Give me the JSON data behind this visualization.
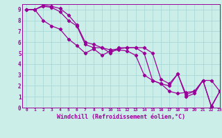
{
  "background_color": "#cceee8",
  "grid_color": "#aad8d8",
  "line_color": "#990099",
  "marker": "D",
  "markersize": 2.2,
  "linewidth": 0.9,
  "xlim": [
    -0.5,
    23
  ],
  "ylim": [
    0,
    9.5
  ],
  "xlabel": "Windchill (Refroidissement éolien,°C)",
  "xlabel_fontsize": 6.0,
  "xtick_labels": [
    "0",
    "1",
    "2",
    "3",
    "4",
    "5",
    "6",
    "7",
    "8",
    "9",
    "10",
    "11",
    "12",
    "13",
    "14",
    "15",
    "16",
    "17",
    "18",
    "19",
    "20",
    "21",
    "22",
    "23"
  ],
  "ytick_labels": [
    "0",
    "1",
    "2",
    "3",
    "4",
    "5",
    "6",
    "7",
    "8",
    "9"
  ],
  "series": [
    [
      9.0,
      9.0,
      9.4,
      9.3,
      9.1,
      8.5,
      7.6,
      6.0,
      5.8,
      5.5,
      5.3,
      5.4,
      5.5,
      5.5,
      5.5,
      5.0,
      2.6,
      2.2,
      3.1,
      1.0,
      1.3,
      2.5,
      2.5,
      1.5
    ],
    [
      9.0,
      9.0,
      8.0,
      7.5,
      7.2,
      6.3,
      5.7,
      5.0,
      5.4,
      4.8,
      5.2,
      5.3,
      5.2,
      4.8,
      3.0,
      2.5,
      2.2,
      1.5,
      1.3,
      1.4,
      1.5,
      2.5,
      0.05,
      1.5
    ],
    [
      9.0,
      9.0,
      9.3,
      9.2,
      8.8,
      8.0,
      7.5,
      5.8,
      5.5,
      5.5,
      5.0,
      5.5,
      5.5,
      5.5,
      5.0,
      2.5,
      2.2,
      2.0,
      3.1,
      1.2,
      1.5,
      2.5,
      0.15,
      1.5
    ]
  ]
}
